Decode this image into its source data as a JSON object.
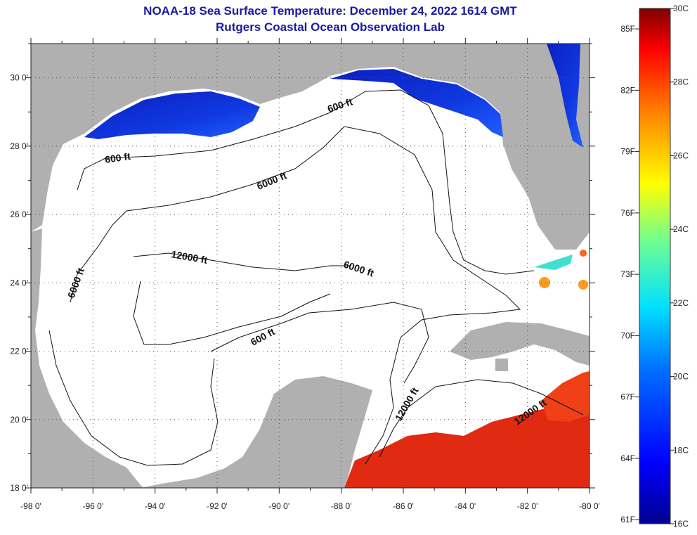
{
  "title": "NOAA-18 Sea Surface Temperature:  December 24, 2022 1614 GMT",
  "subtitle": "Rutgers Coastal Ocean Observation Lab",
  "map": {
    "lon_ticks": [
      "-98 0'",
      "-96 0'",
      "-94 0'",
      "-92 0'",
      "-90 0'",
      "-88 0'",
      "-86 0'",
      "-84 0'",
      "-82 0'",
      "-80 0'"
    ],
    "lat_ticks": [
      "30 0'",
      "28 0'",
      "26 0'",
      "24 0'",
      "22 0'",
      "20 0'",
      "18 0'"
    ],
    "lon_range": [
      -98,
      -80
    ],
    "lat_range": [
      18,
      31
    ],
    "contour_labels": [
      "600 ft",
      "600 ft",
      "6000 ft",
      "6000 ft",
      "6000 ft",
      "12000 ft",
      "600 ft",
      "12000 ft",
      "12000 ft"
    ],
    "colors": {
      "land": "#b0b0b0",
      "ocean_nodata": "#ffffff",
      "cold_water": "#1030d0",
      "warm_water": "#e02010"
    }
  },
  "colorbar": {
    "f_labels": [
      "85F",
      "82F",
      "79F",
      "76F",
      "73F",
      "70F",
      "67F",
      "64F",
      "61F"
    ],
    "c_labels": [
      "30C",
      "28C",
      "26C",
      "24C",
      "22C",
      "20C",
      "18C",
      "16C"
    ],
    "range_c": [
      16,
      30
    ]
  }
}
